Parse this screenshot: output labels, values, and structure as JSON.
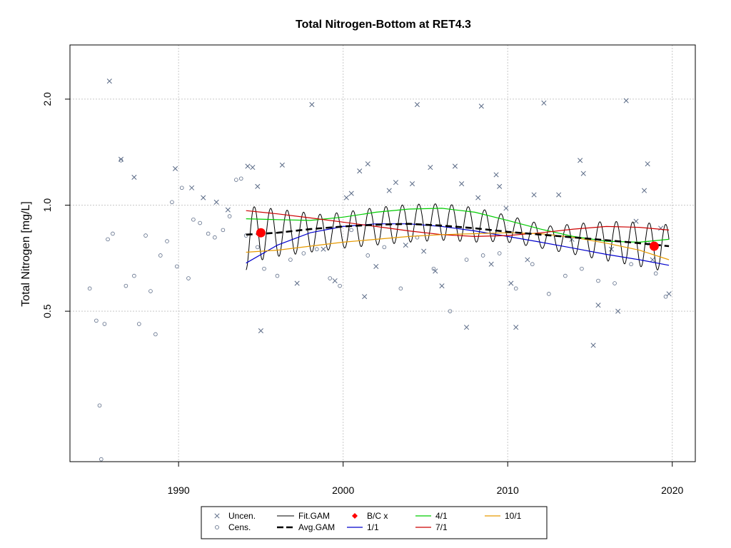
{
  "chart_data": {
    "type": "scatter",
    "title": "Total Nitrogen-Bottom at RET4.3",
    "xlabel": "",
    "ylabel": "Total Nitrogen [mg/L]",
    "y_scale": "log",
    "xlim": [
      1983.4,
      2021.4
    ],
    "ylim": [
      0.187,
      2.85
    ],
    "x_ticks": [
      1990,
      2000,
      2010,
      2020
    ],
    "x_tick_labels": [
      "1990",
      "2000",
      "2010",
      "2020"
    ],
    "y_ticks": [
      0.5,
      1.0,
      2.0
    ],
    "y_tick_labels": [
      "0.5",
      "1.0",
      "2.0"
    ],
    "grid": true,
    "legend_position": "bottom",
    "legend": [
      {
        "label": "Uncen.",
        "symbol": "x"
      },
      {
        "label": "Cens.",
        "symbol": "circle"
      },
      {
        "label": "Fit.GAM",
        "symbol": "line"
      },
      {
        "label": "Avg.GAM",
        "symbol": "dashed-line"
      },
      {
        "label": "B/C x",
        "symbol": "diamond"
      },
      {
        "label": "1/1",
        "symbol": "line"
      },
      {
        "label": "4/1",
        "symbol": "line"
      },
      {
        "label": "7/1",
        "symbol": "line"
      },
      {
        "label": "10/1",
        "symbol": "line"
      }
    ],
    "colors": {
      "points": "#5a6a86",
      "fit_gam": "#000000",
      "avg_gam": "#000000",
      "bc_points": "#ff0000",
      "d1_1": "#0000cc",
      "d4_1": "#00cc00",
      "d7_1": "#cc0000",
      "d10_1": "#e69a00"
    },
    "series": [
      {
        "name": "Uncen.",
        "marker": "x",
        "points": [
          [
            1985.8,
            2.25
          ],
          [
            1986.5,
            1.35
          ],
          [
            1987.3,
            1.2
          ],
          [
            1989.8,
            1.27
          ],
          [
            1990.8,
            1.12
          ],
          [
            1991.5,
            1.05
          ],
          [
            1992.3,
            1.02
          ],
          [
            1993.0,
            0.97
          ],
          [
            1994.2,
            1.29
          ],
          [
            1994.5,
            1.28
          ],
          [
            1994.8,
            1.13
          ],
          [
            1995.0,
            0.44
          ],
          [
            1996.3,
            1.3
          ],
          [
            1997.2,
            0.6
          ],
          [
            1998.1,
            1.93
          ],
          [
            1998.8,
            0.75
          ],
          [
            1999.5,
            0.61
          ],
          [
            2000.2,
            1.05
          ],
          [
            2000.5,
            1.08
          ],
          [
            2001.0,
            1.25
          ],
          [
            2001.3,
            0.55
          ],
          [
            2001.5,
            1.31
          ],
          [
            2002.0,
            0.67
          ],
          [
            2002.8,
            1.1
          ],
          [
            2003.2,
            1.16
          ],
          [
            2003.8,
            0.77
          ],
          [
            2004.2,
            1.15
          ],
          [
            2004.5,
            1.93
          ],
          [
            2004.9,
            0.74
          ],
          [
            2005.3,
            1.28
          ],
          [
            2005.6,
            0.65
          ],
          [
            2006.0,
            0.59
          ],
          [
            2006.8,
            1.29
          ],
          [
            2007.2,
            1.15
          ],
          [
            2007.5,
            0.45
          ],
          [
            2008.2,
            1.05
          ],
          [
            2008.4,
            1.91
          ],
          [
            2009.0,
            0.68
          ],
          [
            2009.3,
            1.22
          ],
          [
            2009.5,
            1.13
          ],
          [
            2009.9,
            0.98
          ],
          [
            2010.2,
            0.6
          ],
          [
            2010.5,
            0.45
          ],
          [
            2011.2,
            0.7
          ],
          [
            2011.6,
            1.07
          ],
          [
            2012.2,
            1.95
          ],
          [
            2013.1,
            1.07
          ],
          [
            2013.9,
            0.8
          ],
          [
            2014.4,
            1.34
          ],
          [
            2014.6,
            1.23
          ],
          [
            2015.2,
            0.4
          ],
          [
            2015.5,
            0.52
          ],
          [
            2016.3,
            0.75
          ],
          [
            2016.7,
            0.5
          ],
          [
            2017.2,
            1.98
          ],
          [
            2017.8,
            0.9
          ],
          [
            2018.3,
            1.1
          ],
          [
            2018.5,
            1.31
          ],
          [
            2018.8,
            0.7
          ],
          [
            2019.3,
            0.86
          ],
          [
            2019.8,
            0.56
          ]
        ]
      },
      {
        "name": "Cens.",
        "marker": "circle",
        "points": [
          [
            1984.6,
            0.58
          ],
          [
            1985.0,
            0.47
          ],
          [
            1985.2,
            0.27
          ],
          [
            1985.3,
            0.19
          ],
          [
            1985.5,
            0.46
          ],
          [
            1985.7,
            0.8
          ],
          [
            1986.0,
            0.83
          ],
          [
            1986.5,
            1.34
          ],
          [
            1986.8,
            0.59
          ],
          [
            1987.3,
            0.63
          ],
          [
            1987.6,
            0.46
          ],
          [
            1988.0,
            0.82
          ],
          [
            1988.3,
            0.57
          ],
          [
            1988.6,
            0.43
          ],
          [
            1988.9,
            0.72
          ],
          [
            1989.3,
            0.79
          ],
          [
            1989.6,
            1.02
          ],
          [
            1989.9,
            0.67
          ],
          [
            1990.2,
            1.12
          ],
          [
            1990.6,
            0.62
          ],
          [
            1990.9,
            0.91
          ],
          [
            1991.3,
            0.89
          ],
          [
            1991.8,
            0.83
          ],
          [
            1992.2,
            0.81
          ],
          [
            1992.7,
            0.85
          ],
          [
            1993.1,
            0.93
          ],
          [
            1993.5,
            1.18
          ],
          [
            1993.8,
            1.19
          ],
          [
            1994.1,
            0.82
          ],
          [
            1994.8,
            0.76
          ],
          [
            1995.2,
            0.66
          ],
          [
            1996.0,
            0.63
          ],
          [
            1996.8,
            0.7
          ],
          [
            1997.6,
            0.73
          ],
          [
            1998.4,
            0.75
          ],
          [
            1999.2,
            0.62
          ],
          [
            1999.8,
            0.59
          ],
          [
            2000.5,
            0.85
          ],
          [
            2001.5,
            0.72
          ],
          [
            2002.5,
            0.76
          ],
          [
            2003.5,
            0.58
          ],
          [
            2004.5,
            0.81
          ],
          [
            2005.5,
            0.66
          ],
          [
            2006.5,
            0.5
          ],
          [
            2007.5,
            0.7
          ],
          [
            2008.5,
            0.72
          ],
          [
            2009.5,
            0.73
          ],
          [
            2010.5,
            0.58
          ],
          [
            2011.5,
            0.68
          ],
          [
            2012.5,
            0.56
          ],
          [
            2013.5,
            0.63
          ],
          [
            2014.5,
            0.66
          ],
          [
            2015.5,
            0.61
          ],
          [
            2016.5,
            0.6
          ],
          [
            2017.5,
            0.68
          ],
          [
            2018.5,
            0.78
          ],
          [
            2019.0,
            0.64
          ],
          [
            2019.6,
            0.55
          ]
        ]
      },
      {
        "name": "B/C x",
        "marker": "filled-circle",
        "points": [
          [
            1995.0,
            0.835
          ],
          [
            2018.9,
            0.765
          ]
        ]
      },
      {
        "name": "Avg.GAM",
        "style": "dashed",
        "points": [
          [
            1994.1,
            0.825
          ],
          [
            1996,
            0.835
          ],
          [
            1998,
            0.855
          ],
          [
            2000,
            0.87
          ],
          [
            2002,
            0.88
          ],
          [
            2004,
            0.885
          ],
          [
            2006,
            0.875
          ],
          [
            2008,
            0.86
          ],
          [
            2010,
            0.84
          ],
          [
            2012,
            0.825
          ],
          [
            2014,
            0.81
          ],
          [
            2016,
            0.795
          ],
          [
            2018,
            0.78
          ],
          [
            2019.8,
            0.765
          ]
        ]
      },
      {
        "name": "1/1",
        "points": [
          [
            1994.1,
            0.685
          ],
          [
            1996,
            0.77
          ],
          [
            1998,
            0.835
          ],
          [
            2000,
            0.87
          ],
          [
            2002,
            0.885
          ],
          [
            2004,
            0.885
          ],
          [
            2006,
            0.87
          ],
          [
            2008,
            0.845
          ],
          [
            2010,
            0.815
          ],
          [
            2012,
            0.785
          ],
          [
            2014,
            0.755
          ],
          [
            2016,
            0.725
          ],
          [
            2018,
            0.7
          ],
          [
            2019.8,
            0.675
          ]
        ]
      },
      {
        "name": "4/1",
        "points": [
          [
            1994.1,
            0.915
          ],
          [
            1996,
            0.91
          ],
          [
            1998,
            0.905
          ],
          [
            2000,
            0.925
          ],
          [
            2002,
            0.955
          ],
          [
            2004,
            0.975
          ],
          [
            2006,
            0.98
          ],
          [
            2008,
            0.955
          ],
          [
            2010,
            0.905
          ],
          [
            2012,
            0.855
          ],
          [
            2014,
            0.815
          ],
          [
            2016,
            0.79
          ],
          [
            2018,
            0.785
          ],
          [
            2019.8,
            0.8
          ]
        ]
      },
      {
        "name": "7/1",
        "points": [
          [
            1994.1,
            0.965
          ],
          [
            1996,
            0.945
          ],
          [
            1998,
            0.92
          ],
          [
            2000,
            0.895
          ],
          [
            2002,
            0.87
          ],
          [
            2004,
            0.845
          ],
          [
            2006,
            0.825
          ],
          [
            2008,
            0.815
          ],
          [
            2010,
            0.82
          ],
          [
            2012,
            0.835
          ],
          [
            2014,
            0.855
          ],
          [
            2016,
            0.87
          ],
          [
            2018,
            0.865
          ],
          [
            2019.8,
            0.85
          ]
        ]
      },
      {
        "name": "10/1",
        "points": [
          [
            1994.1,
            0.735
          ],
          [
            1996,
            0.745
          ],
          [
            1998,
            0.765
          ],
          [
            2000,
            0.785
          ],
          [
            2002,
            0.8
          ],
          [
            2004,
            0.815
          ],
          [
            2006,
            0.825
          ],
          [
            2008,
            0.83
          ],
          [
            2010,
            0.835
          ],
          [
            2012,
            0.83
          ],
          [
            2014,
            0.81
          ],
          [
            2016,
            0.78
          ],
          [
            2018,
            0.745
          ],
          [
            2019.8,
            0.7
          ]
        ]
      },
      {
        "name": "Fit.GAM",
        "seasonal": true,
        "cycles": 26,
        "x_start": 1994.1,
        "x_end": 2019.8
      }
    ]
  }
}
